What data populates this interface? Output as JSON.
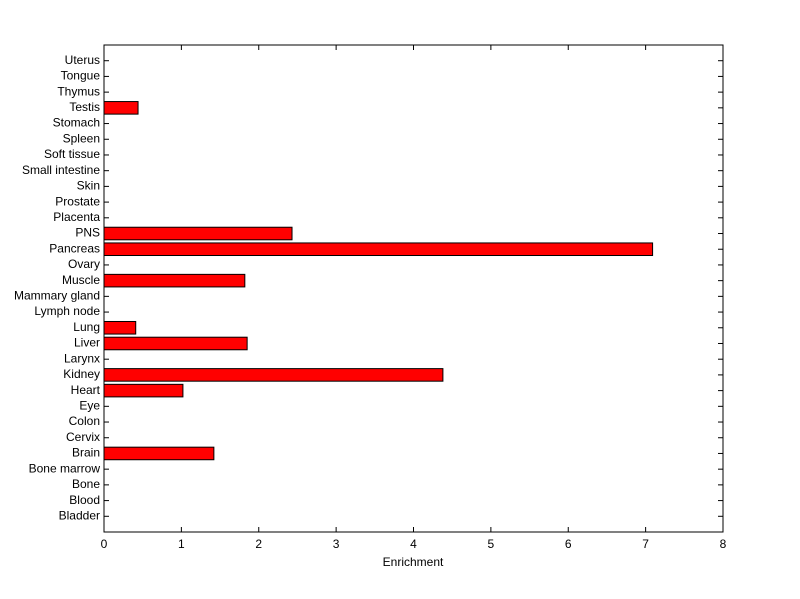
{
  "chart_data": {
    "type": "barh",
    "xlabel": "Enrichment",
    "categories": [
      "Bladder",
      "Blood",
      "Bone",
      "Bone marrow",
      "Brain",
      "Cervix",
      "Colon",
      "Eye",
      "Heart",
      "Kidney",
      "Larynx",
      "Liver",
      "Lung",
      "Lymph node",
      "Mammary gland",
      "Muscle",
      "Ovary",
      "Pancreas",
      "PNS",
      "Placenta",
      "Prostate",
      "Skin",
      "Small intestine",
      "Soft tissue",
      "Spleen",
      "Stomach",
      "Testis",
      "Thymus",
      "Tongue",
      "Uterus"
    ],
    "values": [
      0,
      0,
      0,
      0,
      1.42,
      0,
      0,
      0,
      1.02,
      4.38,
      0,
      1.85,
      0.41,
      0,
      0,
      1.82,
      0,
      7.09,
      2.43,
      0,
      0,
      0,
      0,
      0,
      0,
      0,
      0.44,
      0,
      0,
      0
    ],
    "color": "#ff0000",
    "xlim": [
      0,
      8
    ],
    "xticks": [
      0,
      1,
      2,
      3,
      4,
      5,
      6,
      7,
      8
    ]
  }
}
